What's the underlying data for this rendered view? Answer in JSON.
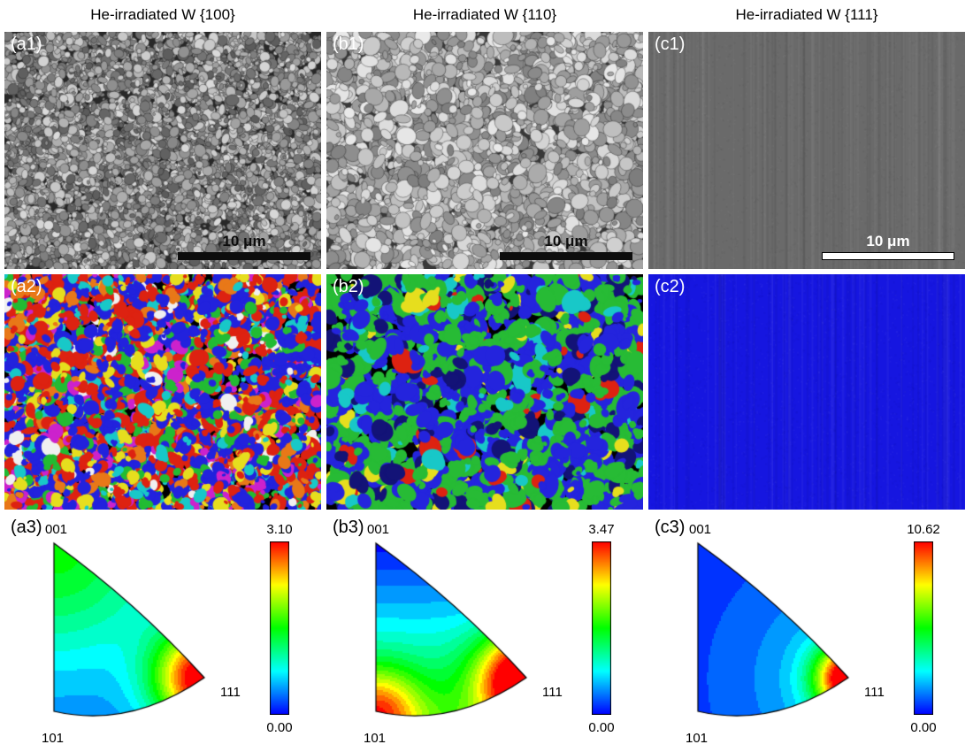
{
  "figure": {
    "panels": [
      {
        "title": "He-irradiated W {100}",
        "micrograph_label": "(a1)",
        "orientation_map_label": "(a2)",
        "pole_figure_label": "(a3)",
        "scale_bar_text": "10 μm",
        "ipf_triangle": {
          "corner_001": "001",
          "corner_101": "101",
          "corner_111": "111"
        },
        "colorbar": {
          "max": "3.10",
          "min": "0.00"
        }
      },
      {
        "title": "He-irradiated W {110}",
        "micrograph_label": "(b1)",
        "orientation_map_label": "(b2)",
        "pole_figure_label": "(b3)",
        "scale_bar_text": "10 μm",
        "ipf_triangle": {
          "corner_001": "001",
          "corner_101": "101",
          "corner_111": "111"
        },
        "colorbar": {
          "max": "3.47",
          "min": "0.00"
        }
      },
      {
        "title": "He-irradiated W {111}",
        "micrograph_label": "(c1)",
        "orientation_map_label": "(c2)",
        "pole_figure_label": "(c3)",
        "scale_bar_text": "10 μm",
        "ipf_triangle": {
          "corner_001": "001",
          "corner_101": "101",
          "corner_111": "111"
        },
        "colorbar": {
          "max": "10.62",
          "min": "0.00"
        }
      }
    ],
    "colors": {
      "colormap_stops": [
        "#0000ff",
        "#00ffff",
        "#00ff00",
        "#ffff00",
        "#ff0000"
      ],
      "ipf_solid_blue": "#1616e0",
      "micrograph_flat_gray": "#6a6a6a",
      "ipf_palette_100": [
        "#2222dd",
        "#dd2211",
        "#22bb33",
        "#e6de1e",
        "#e87818",
        "#18c8c8",
        "#cc22cc",
        "#f0f0f0"
      ],
      "ipf_palette_110": [
        "#27bb35",
        "#2424dd",
        "#131377",
        "#18c8c8",
        "#e6de1e",
        "#dd2211"
      ]
    }
  }
}
